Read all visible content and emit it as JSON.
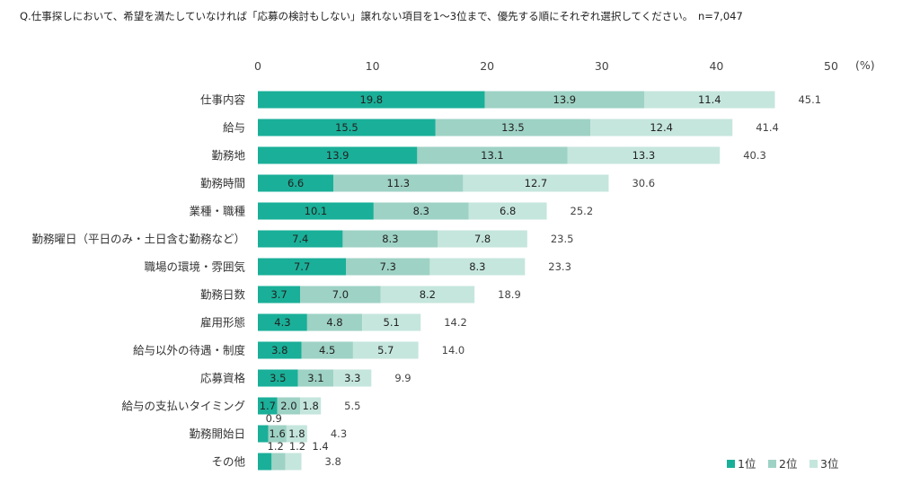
{
  "chart_data": {
    "type": "bar",
    "orientation": "horizontal",
    "stacked": true,
    "title": "Q.仕事探しにおいて、希望を満たしていなければ「応募の検討もしない」譲れない項目を1～3位まで、優先する順にそれぞれ選択してください。　n=7,047",
    "unit": "(%)",
    "xlim": [
      0,
      50
    ],
    "xticks": [
      "0",
      "10",
      "20",
      "30",
      "40",
      "50"
    ],
    "legend_position": "bottom-right",
    "grid": false,
    "categories": [
      "仕事内容",
      "給与",
      "勤務地",
      "勤務時間",
      "業種・職種",
      "勤務曜日（平日のみ・土日含む勤務など）",
      "職場の環境・雰囲気",
      "勤務日数",
      "雇用形態",
      "給与以外の待遇・制度",
      "応募資格",
      "給与の支払いタイミング",
      "勤務開始日",
      "その他"
    ],
    "series": [
      {
        "name": "1位",
        "color": "#1aaf98",
        "values": [
          19.8,
          15.5,
          13.9,
          6.6,
          10.1,
          7.4,
          7.7,
          3.7,
          4.3,
          3.8,
          3.5,
          1.7,
          0.9,
          1.2
        ],
        "labels": [
          "19.8",
          "15.5",
          "13.9",
          "6.6",
          "10.1",
          "7.4",
          "7.7",
          "3.7",
          "4.3",
          "3.8",
          "3.5",
          "1.7",
          "0.9",
          "1.2"
        ]
      },
      {
        "name": "2位",
        "color": "#9ed2c4",
        "values": [
          13.9,
          13.5,
          13.1,
          11.3,
          8.3,
          8.3,
          7.3,
          7.0,
          4.8,
          4.5,
          3.1,
          2.0,
          1.6,
          1.2
        ],
        "labels": [
          "13.9",
          "13.5",
          "13.1",
          "11.3",
          "8.3",
          "8.3",
          "7.3",
          "7.0",
          "4.8",
          "4.5",
          "3.1",
          "2.0",
          "1.6",
          "1.2"
        ]
      },
      {
        "name": "3位",
        "color": "#c5e6dd",
        "values": [
          11.4,
          12.4,
          13.3,
          12.7,
          6.8,
          7.8,
          8.3,
          8.2,
          5.1,
          5.7,
          3.3,
          1.8,
          1.8,
          1.4
        ],
        "labels": [
          "11.4",
          "12.4",
          "13.3",
          "12.7",
          "6.8",
          "7.8",
          "8.3",
          "8.2",
          "5.1",
          "5.7",
          "3.3",
          "1.8",
          "1.8",
          "1.4"
        ]
      }
    ],
    "totals": [
      "45.1",
      "41.4",
      "40.3",
      "30.6",
      "25.2",
      "23.5",
      "23.3",
      "18.9",
      "14.2",
      "14.0",
      "9.9",
      "5.5",
      "4.3",
      "3.8"
    ]
  }
}
